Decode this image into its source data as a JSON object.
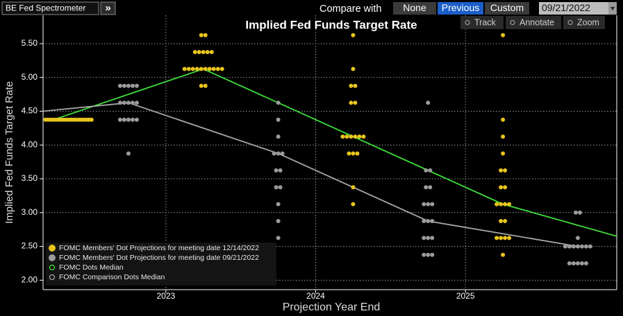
{
  "toolbar": {
    "title": "BE Fed Spectrometer",
    "button": "»",
    "compare_label": "Compare with",
    "options": [
      "None",
      "Previous",
      "Custom"
    ],
    "selected": "Previous",
    "date": "09/21/2022"
  },
  "tools": [
    "Track",
    "Annotate",
    "Zoom"
  ],
  "chart_data": {
    "type": "scatter",
    "title": "Implied Fed Funds Target Rate",
    "xlabel": "Projection Year End",
    "ylabel": "Implied Fed Funds Target Rate",
    "xlim": [
      2022.18,
      2026.01
    ],
    "xticks": [
      2023,
      2024,
      2025
    ],
    "ylim": [
      1.86,
      5.92
    ],
    "yticks": [
      {
        "value": 2.0,
        "label": "2.00"
      },
      {
        "value": 2.5,
        "label": "2.50"
      },
      {
        "value": 3.0,
        "label": "3.00"
      },
      {
        "value": 3.5,
        "label": "3.50"
      },
      {
        "value": 4.0,
        "label": "4.00"
      },
      {
        "value": 4.5,
        "label": "4.50"
      },
      {
        "value": 5.0,
        "label": "5.00"
      },
      {
        "value": 5.5,
        "label": "5.50"
      }
    ],
    "grid": true,
    "legend": "lower left",
    "series": [
      {
        "name": "FOMC Members' Dot Projections for meeting date 12/14/2022",
        "type": "dots",
        "color": "#e8c51c",
        "x": [
          2022.35,
          2022.35,
          2022.35,
          2022.35,
          2022.35,
          2022.35,
          2022.35,
          2022.35,
          2022.35,
          2022.35,
          2022.35,
          2022.35,
          2022.35,
          2022.35,
          2022.35,
          2022.35,
          2022.35,
          2022.35,
          2022.35,
          2023.25,
          2023.25,
          2023.25,
          2023.25,
          2023.25,
          2023.25,
          2023.25,
          2023.25,
          2023.25,
          2023.25,
          2023.25,
          2023.25,
          2023.25,
          2023.25,
          2023.25,
          2023.25,
          2023.25,
          2023.25,
          2023.25,
          2024.25,
          2024.25,
          2024.25,
          2024.25,
          2024.25,
          2024.25,
          2024.25,
          2024.25,
          2024.25,
          2024.25,
          2024.25,
          2024.25,
          2024.25,
          2024.25,
          2024.25,
          2024.25,
          2024.25,
          2025.25,
          2025.25,
          2025.25,
          2025.25,
          2025.25,
          2025.25,
          2025.25,
          2025.25,
          2025.25,
          2025.25,
          2025.25,
          2025.25,
          2025.25,
          2025.25,
          2025.25,
          2025.25,
          2025.25,
          2025.25,
          2025.25
        ],
        "values": [
          4.375,
          4.375,
          4.375,
          4.375,
          4.375,
          4.375,
          4.375,
          4.375,
          4.375,
          4.375,
          4.375,
          4.375,
          4.375,
          4.375,
          4.375,
          4.375,
          4.375,
          4.375,
          4.375,
          5.625,
          5.625,
          5.375,
          5.375,
          5.375,
          5.375,
          5.375,
          5.125,
          5.125,
          5.125,
          5.125,
          5.125,
          5.125,
          5.125,
          5.125,
          5.125,
          5.125,
          4.875,
          4.875,
          5.625,
          5.125,
          4.875,
          4.875,
          4.625,
          4.625,
          4.125,
          4.125,
          4.125,
          4.125,
          4.125,
          4.125,
          3.875,
          3.875,
          3.875,
          3.375,
          3.125,
          5.625,
          4.375,
          4.125,
          3.875,
          3.625,
          3.625,
          3.375,
          3.375,
          3.125,
          3.125,
          3.125,
          3.125,
          2.875,
          2.875,
          2.625,
          2.625,
          2.625,
          2.625,
          2.375
        ]
      },
      {
        "name": "FOMC Members' Dot Projections for meeting date 09/21/2022",
        "type": "dots",
        "color": "#9b9b9b",
        "x": [
          2022.75,
          2022.75,
          2022.75,
          2022.75,
          2022.75,
          2022.75,
          2022.75,
          2022.75,
          2022.75,
          2022.75,
          2022.75,
          2022.75,
          2022.75,
          2022.75,
          2022.75,
          2022.75,
          2023.75,
          2023.75,
          2023.75,
          2023.75,
          2023.75,
          2023.75,
          2023.75,
          2023.75,
          2023.75,
          2023.75,
          2023.75,
          2023.75,
          2023.75,
          2024.75,
          2024.75,
          2024.75,
          2024.75,
          2024.75,
          2024.75,
          2024.75,
          2024.75,
          2024.75,
          2024.75,
          2024.75,
          2024.75,
          2024.75,
          2024.75,
          2024.75,
          2024.75,
          2024.75,
          2025.75,
          2025.75,
          2025.75,
          2025.75,
          2025.75,
          2025.75,
          2025.75,
          2025.75,
          2025.75,
          2025.75,
          2025.75,
          2025.75,
          2025.75,
          2025.75,
          2025.75
        ],
        "values": [
          4.875,
          4.875,
          4.875,
          4.875,
          4.875,
          4.625,
          4.625,
          4.625,
          4.625,
          4.625,
          4.375,
          4.375,
          4.375,
          4.375,
          4.375,
          3.875,
          4.625,
          4.375,
          4.125,
          3.875,
          3.875,
          3.875,
          3.625,
          3.625,
          3.375,
          3.375,
          3.125,
          2.875,
          2.625,
          4.625,
          3.625,
          3.625,
          3.375,
          3.375,
          3.125,
          3.125,
          3.125,
          2.875,
          2.875,
          2.875,
          2.625,
          2.625,
          2.625,
          2.375,
          2.375,
          2.375,
          3.0,
          3.0,
          2.625,
          2.5,
          2.5,
          2.5,
          2.5,
          2.5,
          2.5,
          2.5,
          2.25,
          2.25,
          2.25,
          2.25,
          2.25
        ]
      },
      {
        "name": "FOMC Dots Median",
        "type": "line",
        "color": "#3fe03a",
        "x": [
          2022.25,
          2023.25,
          2024.25,
          2025.25,
          2026.01
        ],
        "values": [
          4.375,
          5.125,
          4.125,
          3.125,
          2.65
        ]
      },
      {
        "name": "FOMC Comparison Dots Median",
        "type": "line",
        "color": "#a6a6a6",
        "x": [
          2022.18,
          2022.75,
          2023.75,
          2024.75,
          2025.75
        ],
        "values": [
          4.5,
          4.625,
          3.875,
          2.875,
          2.5
        ]
      }
    ]
  }
}
